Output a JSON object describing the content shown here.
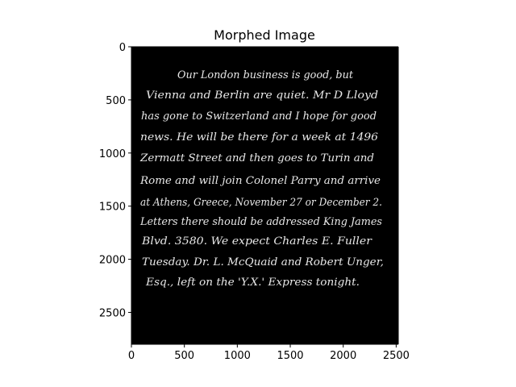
{
  "figure": {
    "title": "Morphed Image",
    "x_ticks": [
      "0",
      "500",
      "1000",
      "1500",
      "2000",
      "2500"
    ],
    "y_ticks": [
      "0",
      "500",
      "1000",
      "1500",
      "2000",
      "2500"
    ],
    "x_tick_values": [
      0,
      500,
      1000,
      1500,
      2000,
      2500
    ],
    "y_tick_values": [
      0,
      500,
      1000,
      1500,
      2000,
      2500
    ],
    "x_range": [
      0,
      2520
    ],
    "y_range": [
      0,
      2800
    ],
    "image_background": "#000000",
    "ink_color": "#e8e8e8"
  },
  "handwriting": {
    "lines": [
      "Our London business is good, but",
      "Vienna and Berlin are quiet. Mr D Lloyd",
      "has gone to Switzerland and I hope for good",
      "news. He will be there for a week at 1496",
      "Zermatt Street and then goes to Turin and",
      "Rome and will join Colonel Parry and arrive",
      "at Athens, Greece, November 27 or December 2.",
      "Letters there should be addressed King James",
      "Blvd. 3580. We expect Charles E. Fuller",
      "Tuesday. Dr. L. McQuaid and Robert Unger,",
      "Esq., left on the 'Y.X.' Express tonight."
    ]
  }
}
